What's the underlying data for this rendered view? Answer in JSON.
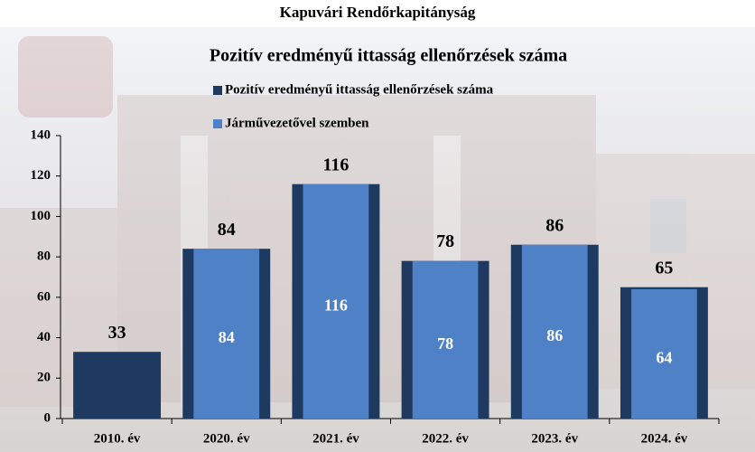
{
  "chart_data": {
    "type": "bar",
    "title": "Kapuvári Rendőrkapitányság",
    "subtitle": "Pozitív eredményű ittasság ellenőrzések száma",
    "categories": [
      "2010. év",
      "2020. év",
      "2021. év",
      "2022. év",
      "2023. év",
      "2024. év"
    ],
    "series": [
      {
        "name": "Pozitív eredményű ittasság ellenőrzések száma",
        "color": "#1f3a60",
        "values": [
          33,
          84,
          116,
          78,
          86,
          65
        ]
      },
      {
        "name": "Járművezetővel szemben",
        "color": "#4f81c7",
        "values": [
          null,
          84,
          116,
          78,
          86,
          64
        ]
      }
    ],
    "ylim": [
      0,
      140
    ],
    "yticks": [
      0,
      20,
      40,
      60,
      80,
      100,
      120,
      140
    ],
    "legend": "top"
  }
}
